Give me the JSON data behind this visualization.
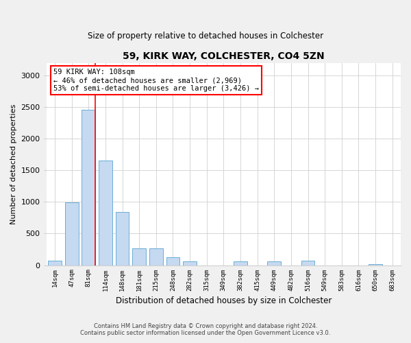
{
  "title": "59, KIRK WAY, COLCHESTER, CO4 5ZN",
  "subtitle": "Size of property relative to detached houses in Colchester",
  "xlabel": "Distribution of detached houses by size in Colchester",
  "ylabel": "Number of detached properties",
  "categories": [
    "14sqm",
    "47sqm",
    "81sqm",
    "114sqm",
    "148sqm",
    "181sqm",
    "215sqm",
    "248sqm",
    "282sqm",
    "315sqm",
    "349sqm",
    "382sqm",
    "415sqm",
    "449sqm",
    "482sqm",
    "516sqm",
    "549sqm",
    "583sqm",
    "616sqm",
    "650sqm",
    "683sqm"
  ],
  "values": [
    75,
    990,
    2460,
    1650,
    840,
    270,
    265,
    130,
    55,
    0,
    0,
    60,
    0,
    65,
    0,
    70,
    0,
    0,
    0,
    20,
    0
  ],
  "bar_color": "#c5d9f0",
  "bar_edge_color": "#6aaed6",
  "red_line_x": 2.4,
  "annotation_text": "59 KIRK WAY: 108sqm\n← 46% of detached houses are smaller (2,969)\n53% of semi-detached houses are larger (3,426) →",
  "annotation_box_color": "white",
  "annotation_box_edge_color": "red",
  "ylim": [
    0,
    3200
  ],
  "yticks": [
    0,
    500,
    1000,
    1500,
    2000,
    2500,
    3000
  ],
  "footer_line1": "Contains HM Land Registry data © Crown copyright and database right 2024.",
  "footer_line2": "Contains public sector information licensed under the Open Government Licence v3.0.",
  "background_color": "#f0f0f0",
  "plot_bg_color": "white",
  "grid_color": "#d0d0d0"
}
